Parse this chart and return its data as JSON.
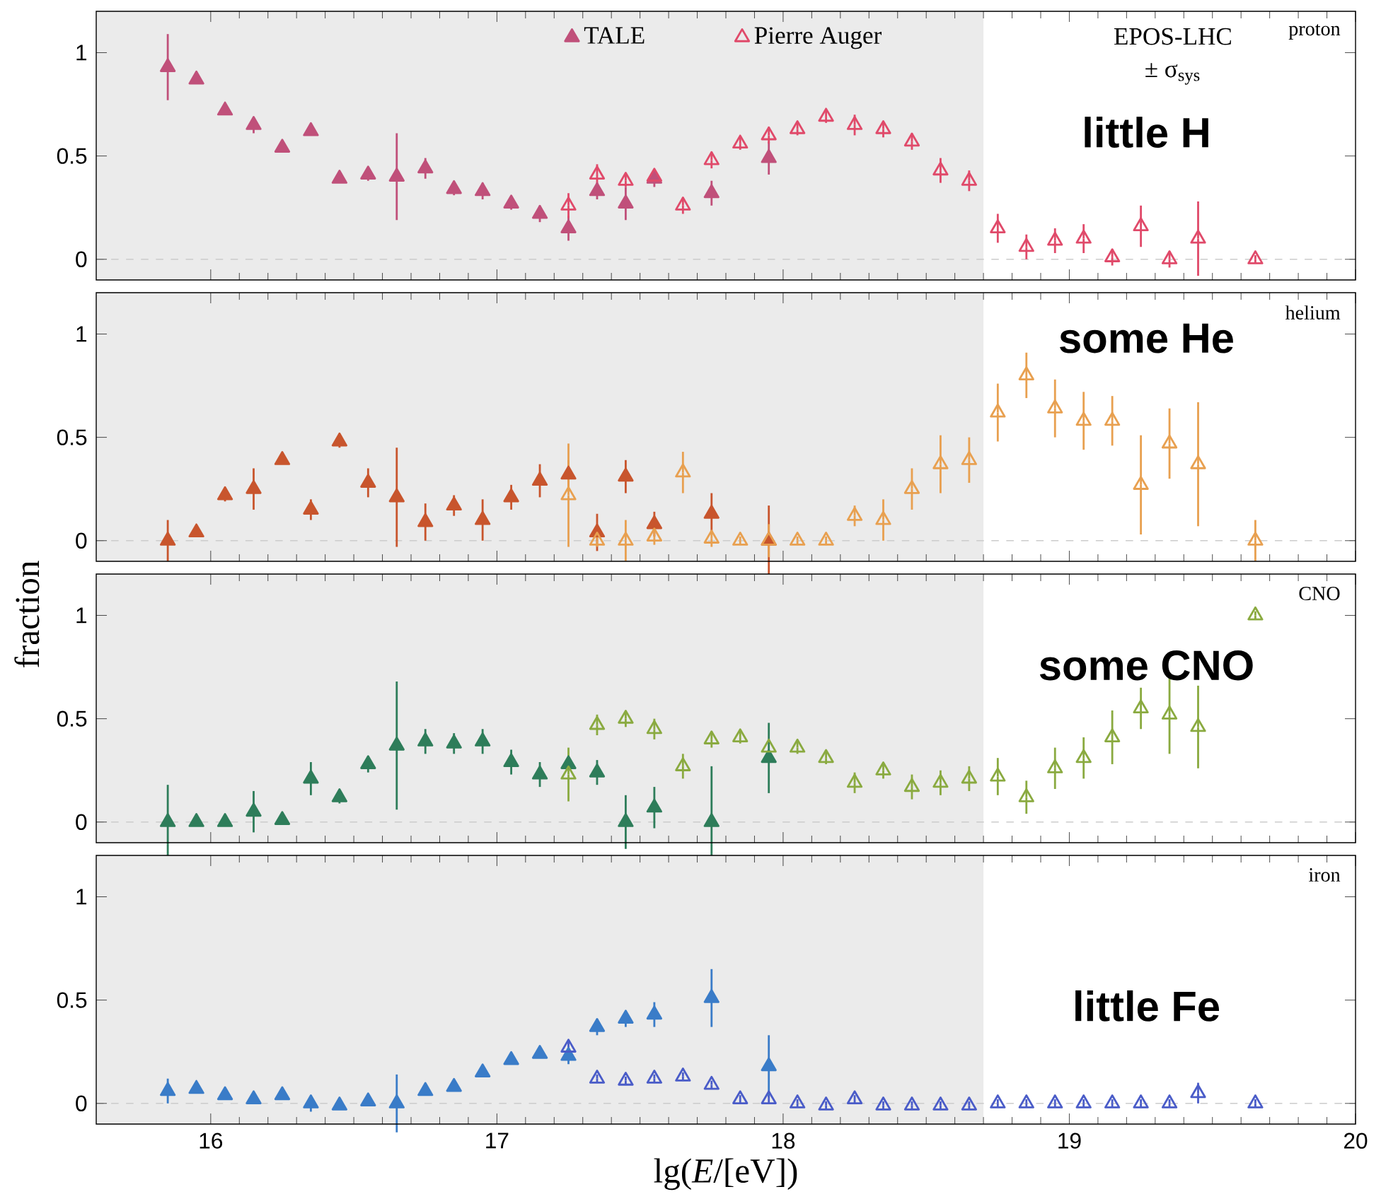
{
  "chart_data": [
    {
      "type": "scatter",
      "xlim": [
        15.6,
        20
      ],
      "ylim": [
        -0.1,
        1.2
      ],
      "xticks": [
        16,
        17,
        18,
        19,
        20
      ],
      "yticks": [
        0,
        0.5,
        1
      ],
      "tick_labels": "y",
      "marker": "triangle",
      "legend": "top",
      "bands": [
        {
          "axis": "x",
          "from": 15.6,
          "to": 18.7,
          "color": "#ebebeb"
        }
      ],
      "ref_lines": [
        {
          "axis": "y",
          "value": 0,
          "color": "#cccccc",
          "line_style": "dashed"
        }
      ],
      "annotations": [
        "proton",
        "EPOS-LHC",
        "± σ$_{sys}$",
        "little H"
      ],
      "series": [
        {
          "name": "TALE",
          "color": "#c0507a",
          "x": [
            15.85,
            15.95,
            16.05,
            16.15,
            16.25,
            16.35,
            16.45,
            16.55,
            16.65,
            16.75,
            16.85,
            16.95,
            17.05,
            17.15,
            17.25,
            17.35,
            17.45,
            17.55,
            17.75,
            17.95
          ],
          "values": [
            0.93,
            0.87,
            0.72,
            0.65,
            0.54,
            0.62,
            0.39,
            0.41,
            0.4,
            0.44,
            0.34,
            0.33,
            0.27,
            0.22,
            0.15,
            0.33,
            0.27,
            0.39,
            0.32,
            0.49
          ],
          "errors": [
            0.16,
            0.02,
            0.02,
            0.04,
            0.02,
            0.02,
            0.02,
            0.03,
            0.21,
            0.05,
            0.03,
            0.04,
            0.03,
            0.04,
            0.06,
            0.04,
            0.08,
            0.04,
            0.06,
            0.08
          ]
        },
        {
          "name": "Pierre Auger",
          "color": "#e04a6a",
          "x": [
            17.25,
            17.35,
            17.45,
            17.55,
            17.65,
            17.75,
            17.85,
            17.95,
            18.05,
            18.15,
            18.25,
            18.35,
            18.45,
            18.55,
            18.65,
            18.75,
            18.85,
            18.95,
            19.05,
            19.15,
            19.25,
            19.35,
            19.45,
            19.65
          ],
          "values": [
            0.26,
            0.41,
            0.38,
            0.4,
            0.26,
            0.48,
            0.56,
            0.6,
            0.63,
            0.69,
            0.65,
            0.63,
            0.57,
            0.43,
            0.38,
            0.15,
            0.06,
            0.09,
            0.1,
            0.01,
            0.16,
            0.0,
            0.1,
            0.0
          ],
          "errors": [
            0.06,
            0.05,
            0.03,
            null,
            0.04,
            0.04,
            0.03,
            0.04,
            0.03,
            0.03,
            0.05,
            0.04,
            0.04,
            0.06,
            0.05,
            0.07,
            0.06,
            0.06,
            0.07,
            0.04,
            0.1,
            0.04,
            0.18,
            0.02
          ]
        }
      ]
    },
    {
      "type": "scatter",
      "xlim": [
        15.6,
        20
      ],
      "ylim": [
        -0.1,
        1.2
      ],
      "xticks": [
        16,
        17,
        18,
        19,
        20
      ],
      "yticks": [
        0,
        0.5,
        1
      ],
      "tick_labels": "y",
      "marker": "triangle",
      "bands": [
        {
          "axis": "x",
          "from": 15.6,
          "to": 18.7,
          "color": "#ebebeb"
        }
      ],
      "ref_lines": [
        {
          "axis": "y",
          "value": 0,
          "color": "#cccccc",
          "line_style": "dashed"
        }
      ],
      "annotations": [
        "helium",
        "some He"
      ],
      "series": [
        {
          "color": "#c8552d",
          "x": [
            15.85,
            15.95,
            16.05,
            16.15,
            16.25,
            16.35,
            16.45,
            16.55,
            16.65,
            16.75,
            16.85,
            16.95,
            17.05,
            17.15,
            17.25,
            17.35,
            17.45,
            17.55,
            17.75,
            17.95
          ],
          "values": [
            0.0,
            0.04,
            0.22,
            0.25,
            0.39,
            0.15,
            0.48,
            0.28,
            0.21,
            0.09,
            0.17,
            0.1,
            0.21,
            0.29,
            0.32,
            0.04,
            0.31,
            0.08,
            0.13,
            0.0
          ],
          "errors": [
            0.1,
            0.02,
            0.03,
            0.1,
            0.02,
            0.05,
            0.03,
            0.07,
            0.24,
            0.09,
            0.05,
            0.1,
            0.06,
            0.08,
            0.07,
            0.09,
            0.08,
            0.06,
            0.1,
            0.17
          ]
        },
        {
          "color": "#e8a050",
          "x": [
            17.25,
            17.35,
            17.45,
            17.55,
            17.65,
            17.75,
            17.85,
            17.95,
            18.05,
            18.15,
            18.25,
            18.35,
            18.45,
            18.55,
            18.65,
            18.75,
            18.85,
            18.95,
            19.05,
            19.15,
            19.25,
            19.35,
            19.45,
            19.65
          ],
          "values": [
            0.22,
            0.0,
            0.0,
            0.02,
            0.33,
            0.01,
            0.0,
            0.0,
            0.0,
            0.0,
            0.12,
            0.1,
            0.25,
            0.37,
            0.39,
            0.62,
            0.8,
            0.64,
            0.58,
            0.58,
            0.27,
            0.47,
            0.37,
            0.0
          ],
          "errors": [
            0.25,
            0.03,
            0.1,
            0.04,
            0.1,
            0.04,
            0.02,
            0.08,
            0.02,
            0.02,
            0.05,
            0.1,
            0.1,
            0.14,
            0.11,
            0.14,
            0.11,
            0.14,
            0.14,
            0.12,
            0.24,
            0.17,
            0.3,
            0.1
          ]
        }
      ]
    },
    {
      "type": "scatter",
      "xlim": [
        15.6,
        20
      ],
      "ylim": [
        -0.1,
        1.2
      ],
      "xticks": [
        16,
        17,
        18,
        19,
        20
      ],
      "yticks": [
        0,
        0.5,
        1
      ],
      "tick_labels": "y",
      "marker": "triangle",
      "ylabel": "fraction",
      "bands": [
        {
          "axis": "x",
          "from": 15.6,
          "to": 18.7,
          "color": "#ebebeb"
        }
      ],
      "ref_lines": [
        {
          "axis": "y",
          "value": 0,
          "color": "#cccccc",
          "line_style": "dashed"
        }
      ],
      "annotations": [
        "CNO",
        "some CNO"
      ],
      "series": [
        {
          "color": "#2e7d5a",
          "x": [
            15.85,
            15.95,
            16.05,
            16.15,
            16.25,
            16.35,
            16.45,
            16.55,
            16.65,
            16.75,
            16.85,
            16.95,
            17.05,
            17.15,
            17.25,
            17.35,
            17.45,
            17.55,
            17.75,
            17.95
          ],
          "values": [
            0.0,
            0.0,
            0.0,
            0.05,
            0.01,
            0.21,
            0.12,
            0.28,
            0.37,
            0.39,
            0.38,
            0.39,
            0.29,
            0.23,
            0.28,
            0.24,
            0.0,
            0.07,
            0.0,
            0.31
          ],
          "errors": [
            0.18,
            0.02,
            0.02,
            0.1,
            0.02,
            0.08,
            0.03,
            0.04,
            0.31,
            0.06,
            0.05,
            0.06,
            0.06,
            0.06,
            null,
            0.06,
            0.13,
            0.1,
            0.27,
            0.17
          ]
        },
        {
          "color": "#8aaa40",
          "x": [
            17.25,
            17.35,
            17.45,
            17.55,
            17.65,
            17.75,
            17.85,
            17.95,
            18.05,
            18.15,
            18.25,
            18.35,
            18.45,
            18.55,
            18.65,
            18.75,
            18.85,
            18.95,
            19.05,
            19.15,
            19.25,
            19.35,
            19.45,
            19.65
          ],
          "values": [
            0.23,
            0.47,
            0.5,
            0.45,
            0.27,
            0.4,
            0.41,
            0.36,
            0.36,
            0.31,
            0.19,
            0.25,
            0.17,
            0.19,
            0.21,
            0.22,
            0.12,
            0.26,
            0.31,
            0.41,
            0.55,
            0.52,
            0.46,
            1.0
          ],
          "errors": [
            0.13,
            0.05,
            0.04,
            0.05,
            0.06,
            0.04,
            0.03,
            null,
            0.03,
            0.03,
            0.05,
            0.04,
            0.06,
            0.06,
            0.06,
            0.09,
            0.08,
            0.1,
            0.1,
            0.13,
            0.1,
            0.19,
            0.2,
            0.02
          ]
        }
      ]
    },
    {
      "type": "scatter",
      "xlim": [
        15.6,
        20
      ],
      "ylim": [
        -0.1,
        1.2
      ],
      "xticks": [
        16,
        17,
        18,
        19,
        20
      ],
      "yticks": [
        0,
        0.5,
        1
      ],
      "marker": "triangle",
      "xlabel": "lg(*E*/[eV])",
      "bands": [
        {
          "axis": "x",
          "from": 15.6,
          "to": 18.7,
          "color": "#ebebeb"
        }
      ],
      "ref_lines": [
        {
          "axis": "y",
          "value": 0,
          "color": "#cccccc",
          "line_style": "dashed"
        }
      ],
      "annotations": [
        "iron",
        "little Fe"
      ],
      "series": [
        {
          "color": "#3a7cc8",
          "x": [
            15.85,
            15.95,
            16.05,
            16.15,
            16.25,
            16.35,
            16.45,
            16.55,
            16.65,
            16.75,
            16.85,
            16.95,
            17.05,
            17.15,
            17.25,
            17.35,
            17.45,
            17.55,
            17.75,
            17.95
          ],
          "values": [
            0.06,
            0.07,
            0.04,
            0.02,
            0.04,
            0.0,
            -0.01,
            0.01,
            0.0,
            0.06,
            0.08,
            0.15,
            0.21,
            0.24,
            0.23,
            0.37,
            0.41,
            0.43,
            0.51,
            0.18
          ],
          "errors": [
            0.06,
            0.02,
            0.02,
            0.02,
            0.02,
            0.04,
            0.02,
            0.02,
            0.14,
            0.02,
            0.02,
            0.02,
            0.02,
            0.02,
            0.04,
            0.04,
            0.04,
            0.06,
            0.14,
            0.15
          ]
        },
        {
          "color": "#4a5cc8",
          "x": [
            17.25,
            17.35,
            17.45,
            17.55,
            17.65,
            17.75,
            17.85,
            17.95,
            18.05,
            18.15,
            18.25,
            18.35,
            18.45,
            18.55,
            18.65,
            18.75,
            18.85,
            18.95,
            19.05,
            19.15,
            19.25,
            19.35,
            19.45,
            19.65
          ],
          "values": [
            0.27,
            0.12,
            0.11,
            0.12,
            0.13,
            0.09,
            0.02,
            0.02,
            0.0,
            -0.01,
            0.02,
            -0.01,
            -0.01,
            -0.01,
            -0.01,
            0.0,
            0.0,
            0.0,
            0.0,
            0.0,
            0.0,
            0.0,
            0.05,
            0.0
          ],
          "errors": [
            0.03,
            0.02,
            0.02,
            0.02,
            0.02,
            0.02,
            0.02,
            0.02,
            0.02,
            0.02,
            0.02,
            0.02,
            0.02,
            0.02,
            0.02,
            0.02,
            0.02,
            0.02,
            0.02,
            0.02,
            0.02,
            0.02,
            0.05,
            0.02
          ]
        }
      ]
    }
  ]
}
